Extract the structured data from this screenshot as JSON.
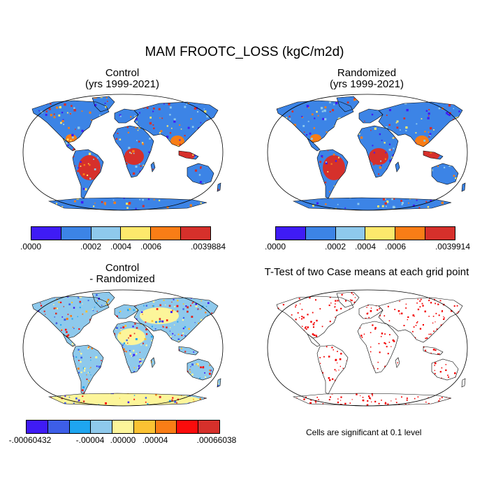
{
  "figure": {
    "title": "MAM FROOTC_LOSS (kgC/m2d)"
  },
  "panels": {
    "control": {
      "title_line1": "Control",
      "title_line2": "(yrs 1999-2021)",
      "colorbar": {
        "colors": [
          "#3f1bf5",
          "#3c84e6",
          "#8ec9ec",
          "#fde96c",
          "#f97d16",
          "#d6302b"
        ],
        "labels": [
          ".0000",
          ".0002",
          ".0004",
          ".0006",
          ".0039884"
        ]
      }
    },
    "randomized": {
      "title_line1": "Randomized",
      "title_line2": "(yrs 1999-2021)",
      "colorbar": {
        "colors": [
          "#3f1bf5",
          "#3c84e6",
          "#8ec9ec",
          "#fde96c",
          "#f97d16",
          "#d6302b"
        ],
        "labels": [
          ".0000",
          ".0002",
          ".0004",
          ".0006",
          ".0039914"
        ]
      }
    },
    "difference": {
      "title_line1": "Control",
      "title_line2": "- Randomized",
      "colorbar": {
        "colors": [
          "#3f1bf5",
          "#3d5ee8",
          "#1ea5f0",
          "#8ec9ec",
          "#fcf59a",
          "#fbc233",
          "#f97d16",
          "#fb0c0c",
          "#d6302b"
        ],
        "labels": [
          "-.00060432",
          "-.00004",
          ".00000",
          ".00004",
          ".00066038"
        ]
      }
    },
    "ttest": {
      "title": "T-Test of two Case means at each grid point",
      "note": "Cells are significant at 0.1 level",
      "marker_color": "#f20000"
    }
  }
}
